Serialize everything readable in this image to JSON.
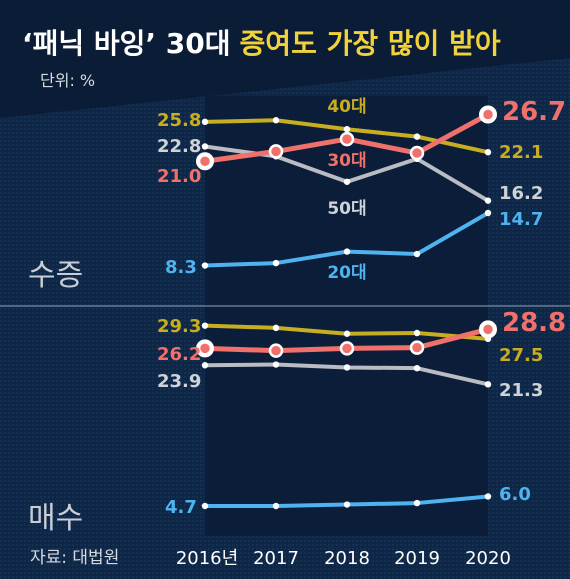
{
  "title": {
    "part1": "‘패닉 바잉’ 30대",
    "part2": "증여도 가장 많이 받아"
  },
  "unit": "단위: %",
  "source": "자료: 대법원",
  "colors": {
    "background": "#0f2747",
    "title_band": "#0b1d36",
    "highlight": "#f2d23a",
    "s40": "#c7ad1f",
    "s30": "#f0716b",
    "s50": "#b9bcc2",
    "s20": "#4fb3f0",
    "label_gray": "#cfd3d8"
  },
  "chart_data": [
    {
      "type": "line",
      "panel": "수증",
      "x": [
        "2016년",
        "2017",
        "2018",
        "2019",
        "2020"
      ],
      "series": [
        {
          "name": "40대",
          "key": "s40",
          "values": [
            25.8,
            26.0,
            24.9,
            24.0,
            22.1
          ],
          "start_label": "25.8",
          "end_label": "22.1"
        },
        {
          "name": "30대",
          "key": "s30",
          "values": [
            21.0,
            22.2,
            23.7,
            22.0,
            26.7
          ],
          "start_label": "21.0",
          "end_label": "26.7"
        },
        {
          "name": "50대",
          "key": "s50",
          "values": [
            22.8,
            21.6,
            18.5,
            21.3,
            16.2
          ],
          "start_label": "22.8",
          "end_label": "16.2"
        },
        {
          "name": "20대",
          "key": "s20",
          "values": [
            8.3,
            8.6,
            10.0,
            9.7,
            14.7
          ],
          "start_label": "8.3",
          "end_label": "14.7"
        }
      ]
    },
    {
      "type": "line",
      "panel": "매수",
      "x": [
        "2016년",
        "2017",
        "2018",
        "2019",
        "2020"
      ],
      "series": [
        {
          "name": "40대",
          "key": "s40",
          "values": [
            29.3,
            29.0,
            28.2,
            28.3,
            27.5
          ],
          "start_label": "29.3",
          "end_label": "27.5"
        },
        {
          "name": "30대",
          "key": "s30",
          "values": [
            26.2,
            25.9,
            26.2,
            26.3,
            28.8
          ],
          "start_label": "26.2",
          "end_label": "28.8"
        },
        {
          "name": "50대",
          "key": "s50",
          "values": [
            23.9,
            24.0,
            23.6,
            23.5,
            21.3
          ],
          "start_label": "23.9",
          "end_label": "21.3"
        },
        {
          "name": "20대",
          "key": "s20",
          "values": [
            4.7,
            4.7,
            4.9,
            5.1,
            6.0
          ],
          "start_label": "4.7",
          "end_label": "6.0"
        }
      ]
    }
  ]
}
